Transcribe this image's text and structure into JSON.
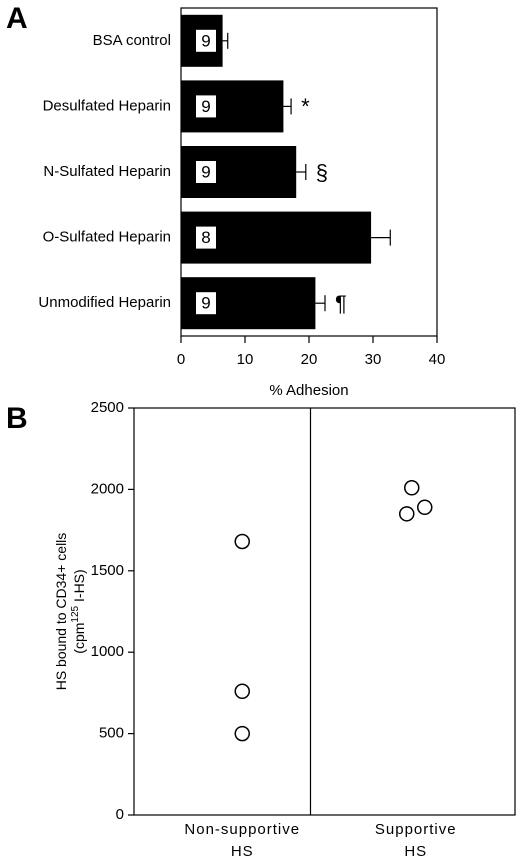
{
  "chart_data": [
    {
      "type": "hbar",
      "panel_label": "A",
      "categories": [
        "BSA control",
        "Desulfated Heparin",
        "N-Sulfated Heparin",
        "O-Sulfated Heparin",
        "Unmodified Heparin"
      ],
      "values": [
        6.5,
        16,
        18,
        29.7,
        21
      ],
      "errors": [
        0.8,
        1.2,
        1.5,
        3,
        1.5
      ],
      "n": [
        9,
        9,
        9,
        8,
        9
      ],
      "annotations": [
        null,
        "*",
        "§",
        null,
        "¶"
      ],
      "color": "#000000",
      "xlabel": "% Adhesion",
      "xlim": [
        0,
        40
      ],
      "xticks": [
        0,
        10,
        20,
        30,
        40
      ]
    },
    {
      "type": "dot",
      "panel_label": "B",
      "categories": [
        [
          "Non-supportive",
          "HS"
        ],
        [
          "Supportive",
          "HS"
        ]
      ],
      "values": [
        [
          1680,
          760,
          500
        ],
        [
          2010,
          1890,
          1850
        ]
      ],
      "ylabel": {
        "line1": "HS bound to CD34+ cells",
        "line2_start": "(cpm",
        "superscript": "125",
        "line2_end": " I-HS)"
      },
      "ylim": [
        0,
        2500
      ],
      "yticks": [
        0,
        500,
        1000,
        1500,
        2000,
        2500
      ]
    }
  ]
}
